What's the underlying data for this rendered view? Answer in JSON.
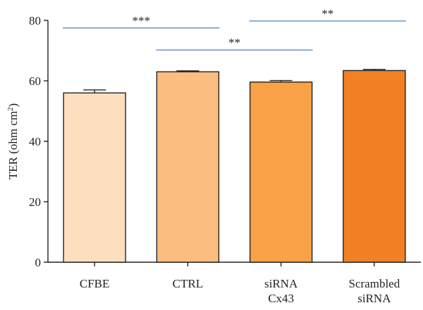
{
  "chart_data": {
    "type": "bar",
    "categories": [
      [
        "CFBE"
      ],
      [
        "CTRL"
      ],
      [
        "siRNA",
        "Cx43"
      ],
      [
        "Scrambled",
        "siRNA"
      ]
    ],
    "values": [
      56.0,
      63.0,
      59.6,
      63.4
    ],
    "errors": [
      1.0,
      0.3,
      0.5,
      0.4
    ],
    "colors": [
      "#fddfbf",
      "#fbbd80",
      "#f9a247",
      "#f28126"
    ],
    "ylabel": "TER (ohm cm",
    "ylabel_sup": "2",
    "ylabel_close": ")",
    "ylim": [
      0,
      80
    ],
    "yticks": [
      0,
      20,
      40,
      60,
      80
    ],
    "grid": false,
    "significance": [
      {
        "from": 0,
        "to": 1,
        "label": "***",
        "level": 77.5
      },
      {
        "from": 1,
        "to": 2,
        "label": "**",
        "level": 70.2
      },
      {
        "from": 2,
        "to": 3,
        "label": "**",
        "level": 79.8
      }
    ],
    "bracket_color": "#4a7fc1"
  }
}
